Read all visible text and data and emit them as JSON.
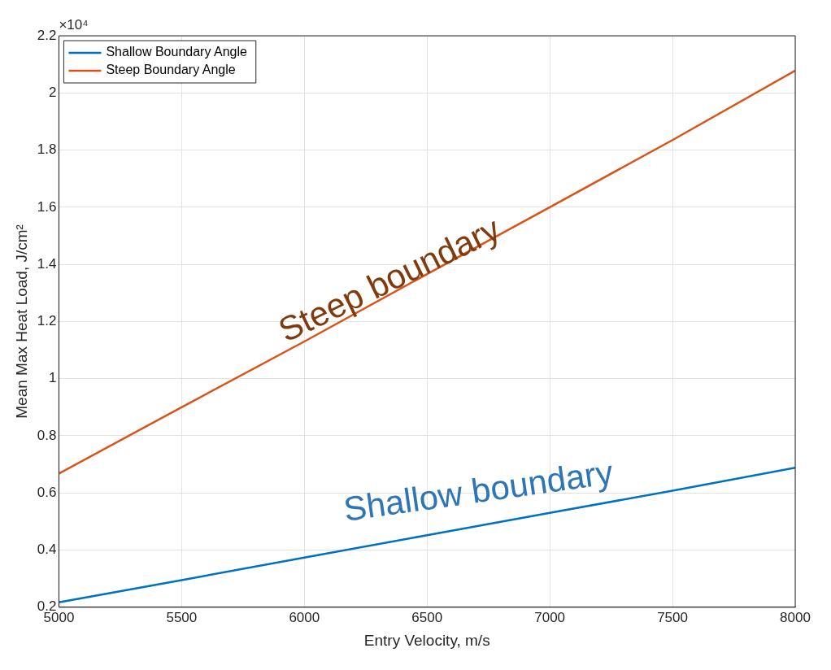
{
  "chart_data": {
    "type": "line",
    "xlabel": "Entry Velocity, m/s",
    "ylabel": "Mean Max Heat Load, J/cm²",
    "xlim": [
      5000,
      8000
    ],
    "xticks": [
      5000,
      5500,
      6000,
      6500,
      7000,
      7500,
      8000
    ],
    "ylim": [
      0.2,
      2.2
    ],
    "yticks": [
      0.2,
      0.4,
      0.6,
      0.8,
      1,
      1.2,
      1.4,
      1.6,
      1.8,
      2,
      2.2
    ],
    "grid": true,
    "legend": "top left",
    "series": [
      {
        "name": "Shallow Boundary Angle",
        "color": "#0072bd",
        "x": [
          5000,
          5500,
          6000,
          6500,
          7000,
          7500,
          8000
        ],
        "values": [
          0.217,
          0.295,
          0.374,
          0.452,
          0.53,
          0.608,
          0.688
        ]
      },
      {
        "name": "Steep Boundary Angle",
        "color": "#d95319",
        "x": [
          5000,
          5500,
          6000,
          6500,
          7000,
          7500,
          8000
        ],
        "values": [
          0.668,
          0.9,
          1.13,
          1.366,
          1.6,
          1.835,
          2.078
        ]
      }
    ],
    "annotations": [
      "×10⁴",
      "Steep boundary",
      "Shallow boundary"
    ]
  }
}
